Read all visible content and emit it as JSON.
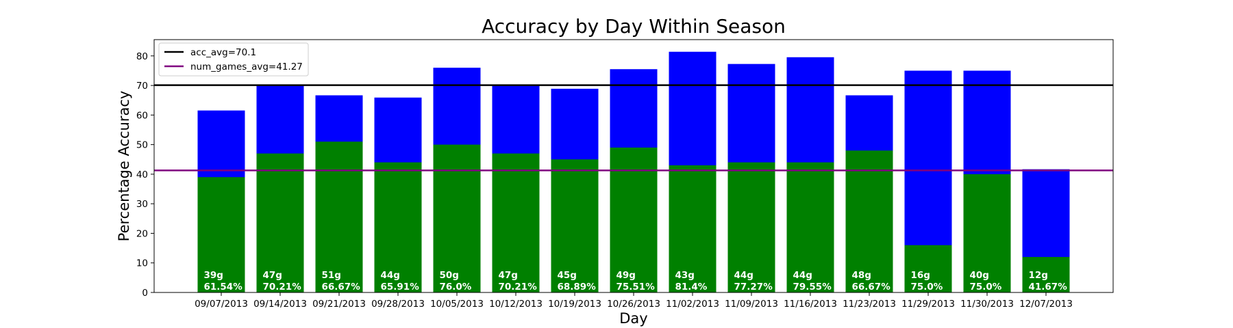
{
  "chart_data": {
    "type": "bar",
    "title": "Accuracy by Day Within Season",
    "xlabel": "Day",
    "ylabel": "Percentage Accuracy",
    "ylim": [
      0,
      85.5
    ],
    "yticks": [
      0,
      10,
      20,
      30,
      40,
      50,
      60,
      70,
      80
    ],
    "categories": [
      "09/07/2013",
      "09/14/2013",
      "09/21/2013",
      "09/28/2013",
      "10/05/2013",
      "10/12/2013",
      "10/19/2013",
      "10/26/2013",
      "11/02/2013",
      "11/09/2013",
      "11/16/2013",
      "11/23/2013",
      "11/29/2013",
      "11/30/2013",
      "12/07/2013"
    ],
    "series": [
      {
        "color": "#0000ff",
        "values": [
          61.54,
          70.21,
          66.67,
          65.91,
          76.0,
          70.21,
          68.89,
          75.51,
          81.4,
          77.27,
          79.55,
          66.67,
          75.0,
          75.0,
          41.67
        ]
      },
      {
        "color": "#008000",
        "values": [
          39,
          47,
          51,
          44,
          50,
          47,
          45,
          49,
          43,
          44,
          44,
          48,
          16,
          40,
          12
        ]
      }
    ],
    "bar_labels": [
      [
        "39g",
        "61.54%"
      ],
      [
        "47g",
        "70.21%"
      ],
      [
        "51g",
        "66.67%"
      ],
      [
        "44g",
        "65.91%"
      ],
      [
        "50g",
        "76.0%"
      ],
      [
        "47g",
        "70.21%"
      ],
      [
        "45g",
        "68.89%"
      ],
      [
        "49g",
        "75.51%"
      ],
      [
        "43g",
        "81.4%"
      ],
      [
        "44g",
        "77.27%"
      ],
      [
        "44g",
        "79.55%"
      ],
      [
        "48g",
        "66.67%"
      ],
      [
        "16g",
        "75.0%"
      ],
      [
        "40g",
        "75.0%"
      ],
      [
        "12g",
        "41.67%"
      ]
    ],
    "hlines": [
      {
        "name": "acc_avg=70.1",
        "value": 70.1,
        "color": "#000000"
      },
      {
        "name": "num_games_avg=41.27",
        "value": 41.27,
        "color": "#800080"
      }
    ],
    "legend_position": "top-left",
    "grid": false
  }
}
